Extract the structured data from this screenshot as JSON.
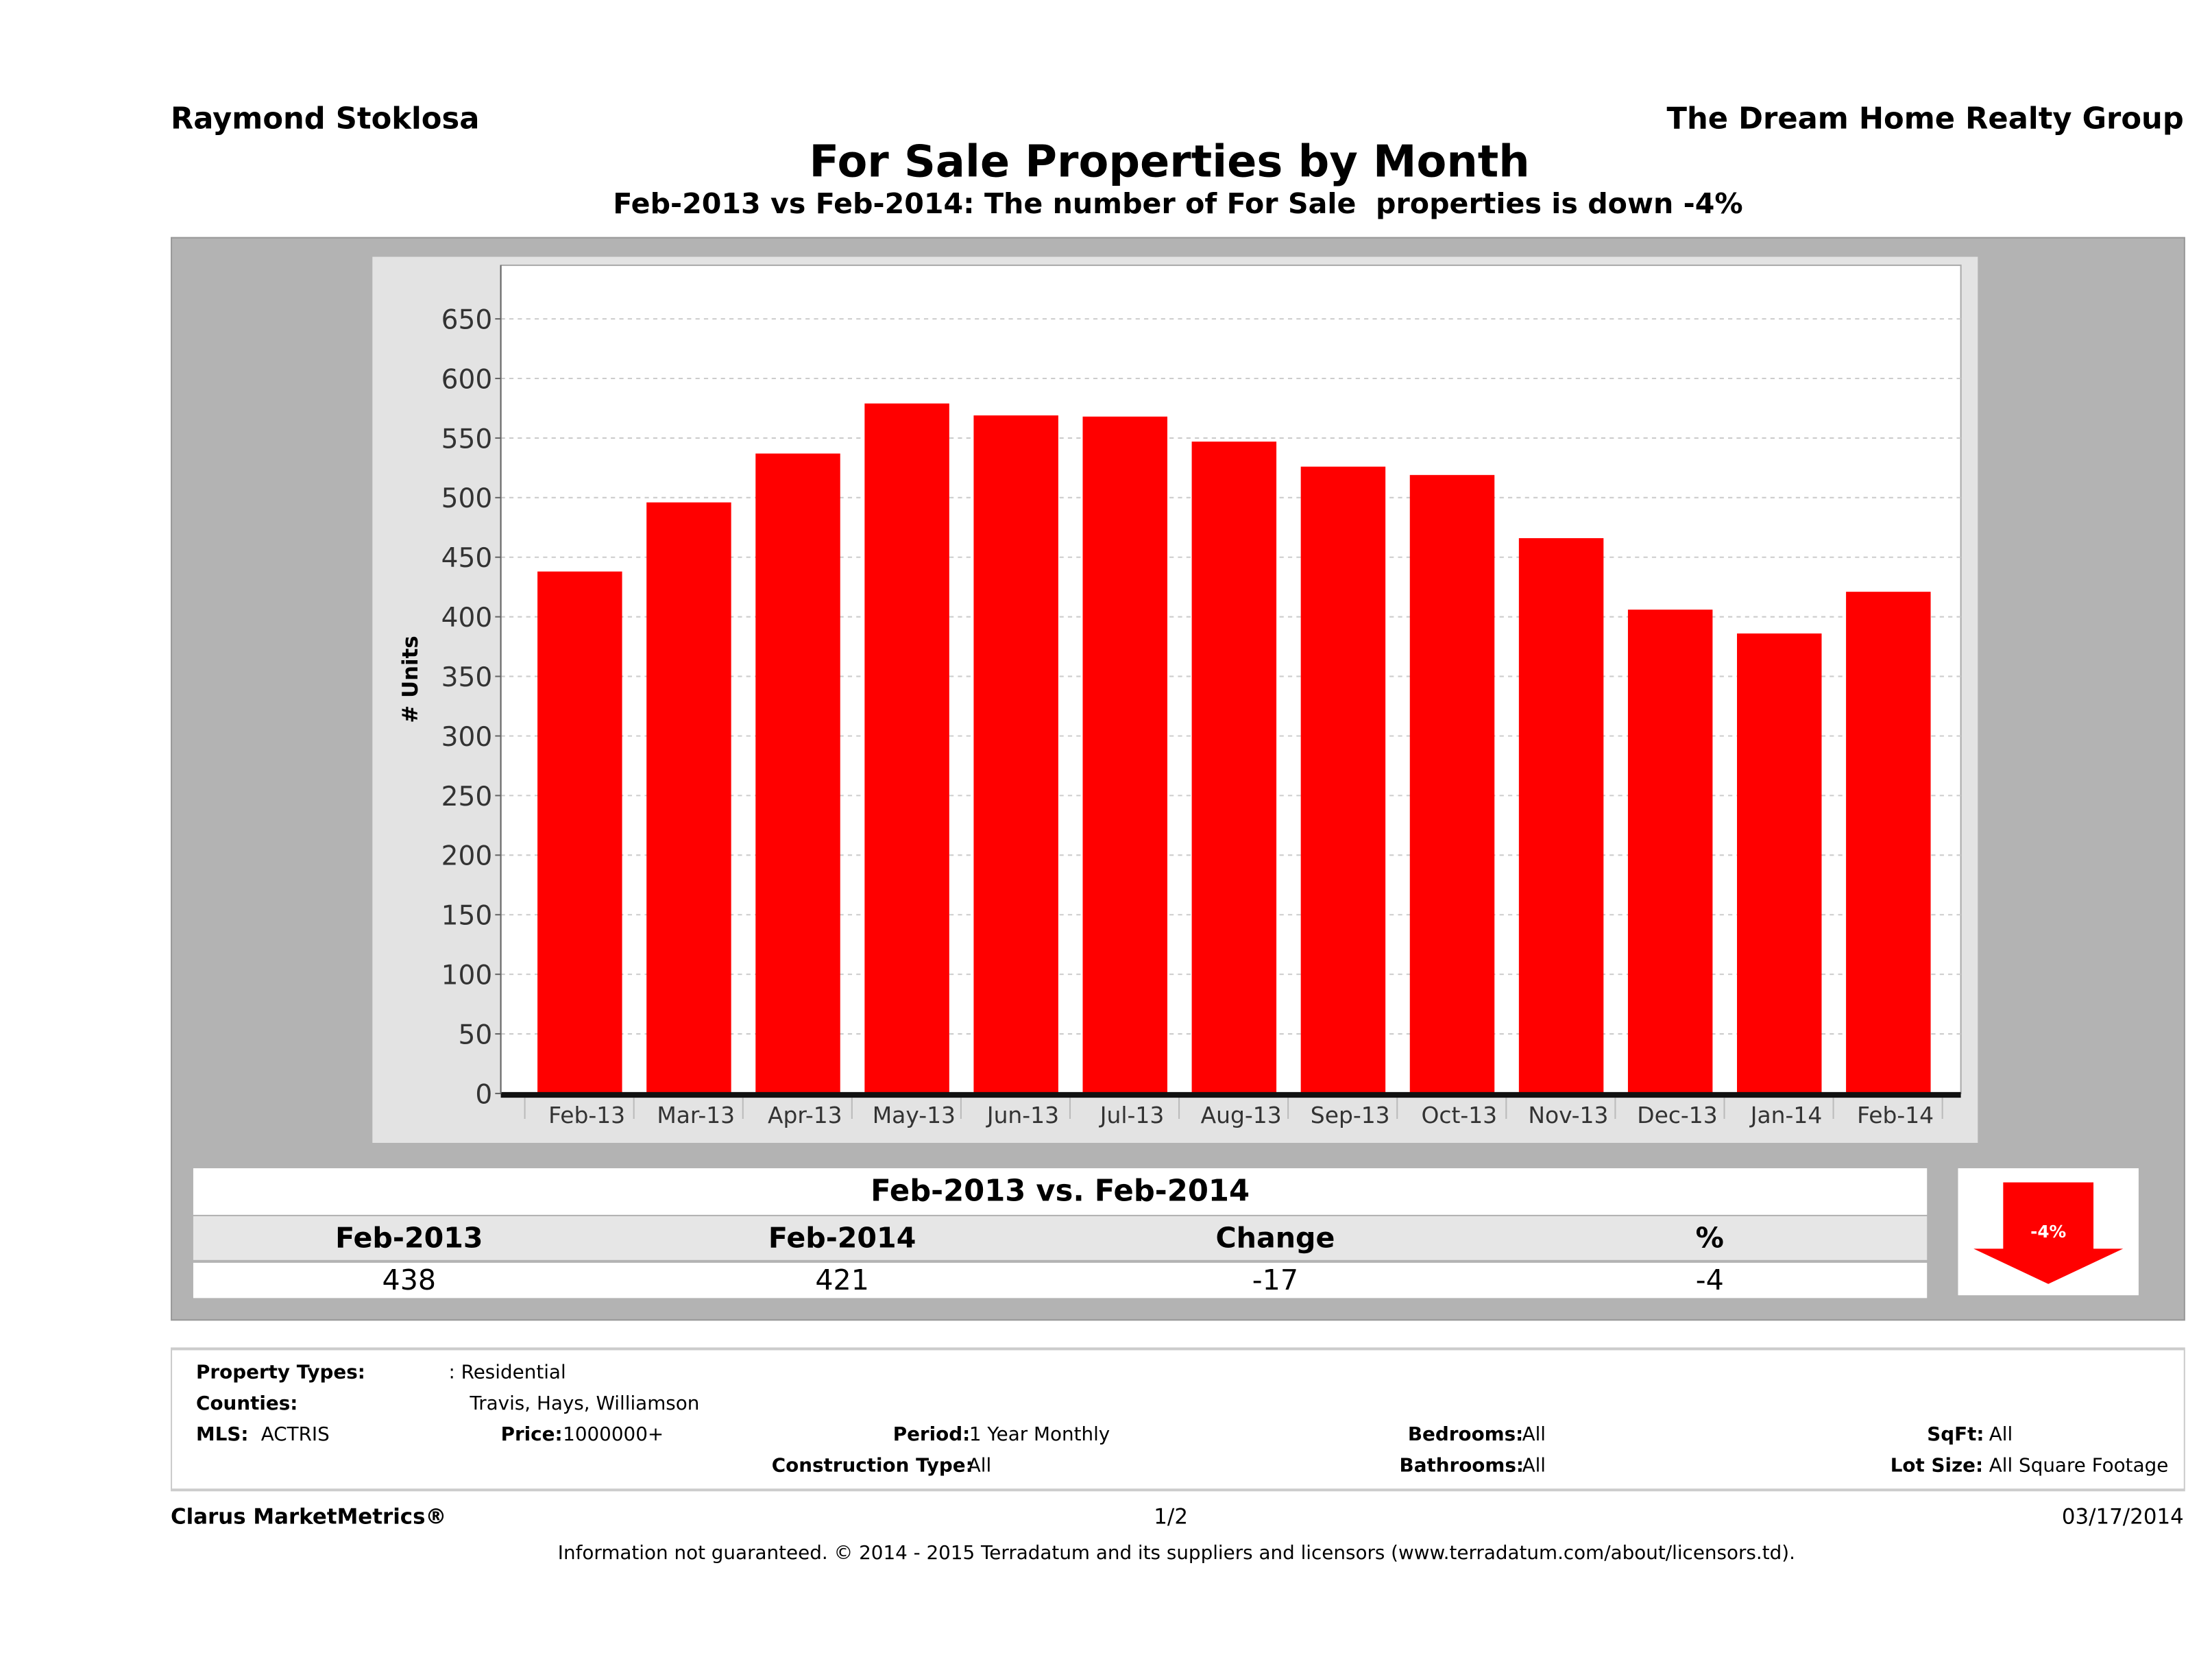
{
  "header": {
    "agent": "Raymond Stoklosa",
    "company": "The Dream Home Realty Group"
  },
  "chart_data": {
    "type": "bar",
    "title": "For Sale Properties by Month",
    "subtitle": "Feb-2013 vs Feb-2014: The number of For Sale  properties is down -4%",
    "ylabel": "# Units",
    "xlabel": "",
    "ylim": [
      0,
      650
    ],
    "yticks": [
      0,
      50,
      100,
      150,
      200,
      250,
      300,
      350,
      400,
      450,
      500,
      550,
      600,
      650
    ],
    "grid": true,
    "bar_color": "#ff0000",
    "categories": [
      "Feb-13",
      "Mar-13",
      "Apr-13",
      "May-13",
      "Jun-13",
      "Jul-13",
      "Aug-13",
      "Sep-13",
      "Oct-13",
      "Nov-13",
      "Dec-13",
      "Jan-14",
      "Feb-14"
    ],
    "values": [
      438,
      496,
      537,
      579,
      569,
      568,
      547,
      526,
      519,
      466,
      406,
      386,
      421
    ]
  },
  "comparison": {
    "title": "Feb-2013 vs. Feb-2014",
    "headers": [
      "Feb-2013",
      "Feb-2014",
      "Change",
      "%"
    ],
    "values": [
      "438",
      "421",
      "-17",
      "-4"
    ],
    "badge": "-4%",
    "badge_icon": "down-arrow-icon"
  },
  "info": {
    "property_types_label": "Property Types:",
    "property_types": ": Residential",
    "counties_label": "Counties:",
    "counties": "Travis, Hays, Williamson",
    "mls_label": "MLS:",
    "mls": "ACTRIS",
    "price_label": "Price:",
    "price": "1000000+",
    "period_label": "Period:",
    "period": "1 Year Monthly",
    "bedrooms_label": "Bedrooms:",
    "bedrooms": "All",
    "sqft_label": "SqFt:",
    "sqft": "All",
    "construction_label": "Construction Type:",
    "construction": "All",
    "bathrooms_label": "Bathrooms:",
    "bathrooms": "All",
    "lot_label": "Lot Size:",
    "lot": "All Square Footage"
  },
  "footer": {
    "brand": "Clarus MarketMetrics®",
    "page": "1/2",
    "date": "03/17/2014",
    "disclaimer": "Information not guaranteed. © 2014 - 2015 Terradatum and its suppliers and licensors (www.terradatum.com/about/licensors.td)."
  }
}
